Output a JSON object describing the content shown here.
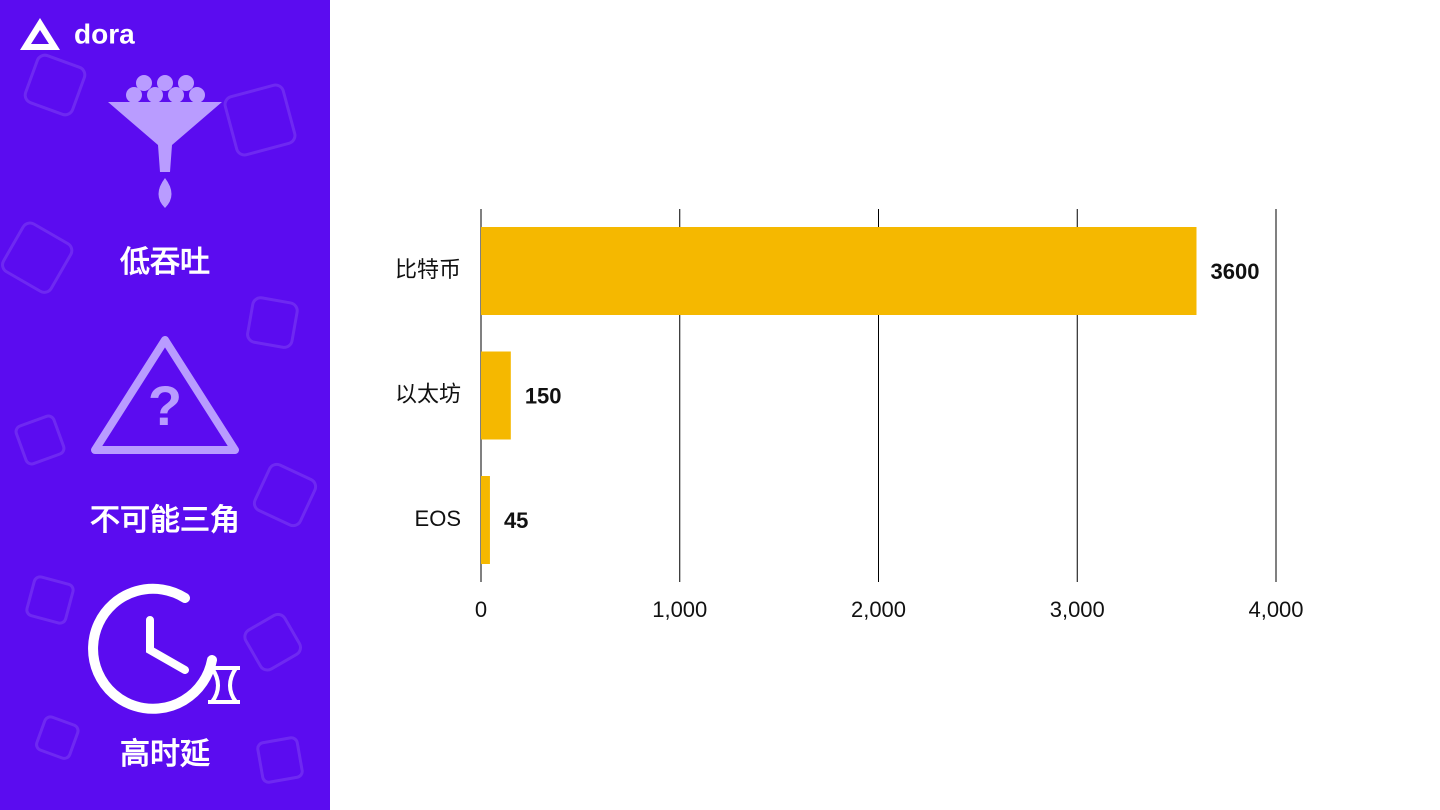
{
  "sidebar": {
    "logo": "dora",
    "items": [
      "低吞吐",
      "不可能三角",
      "高时延"
    ]
  },
  "chart_data": {
    "type": "barh",
    "categories": [
      "比特币",
      "以太坊",
      "EOS"
    ],
    "values": [
      3600,
      150,
      45
    ],
    "color": "#f5b800",
    "xlim": [
      0,
      4000
    ],
    "xticks": [
      0,
      {
        "value": 1000,
        "label": "1,000"
      },
      {
        "value": 2000,
        "label": "2,000"
      },
      {
        "value": 3000,
        "label": "3,000"
      },
      {
        "value": 4000,
        "label": "4,000"
      }
    ],
    "grid": true
  }
}
